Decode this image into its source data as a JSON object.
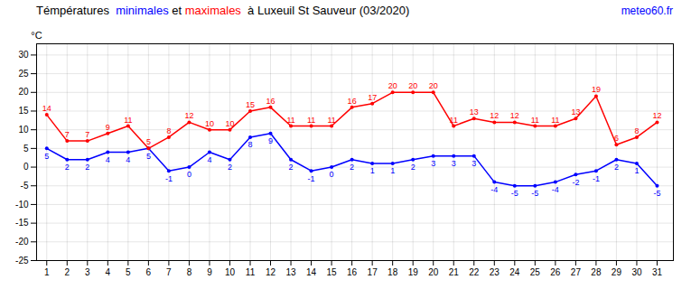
{
  "chart_data": {
    "type": "line",
    "title": "Témpératures  minimales et maximales  à Luxeuil St Sauveur (03/2020)",
    "ylabel": "°C",
    "annotations": [
      "meteo60.fr"
    ],
    "x": [
      1,
      2,
      3,
      4,
      5,
      6,
      7,
      8,
      9,
      10,
      11,
      12,
      13,
      14,
      15,
      16,
      17,
      18,
      19,
      20,
      21,
      22,
      23,
      24,
      25,
      26,
      27,
      28,
      29,
      30,
      31
    ],
    "series": [
      {
        "name": "minimales",
        "color": "blue",
        "marker": "o",
        "values": [
          5,
          2,
          2,
          4,
          4,
          5,
          -1,
          0,
          4,
          2,
          8,
          9,
          2,
          -1,
          0,
          2,
          1,
          1,
          2,
          3,
          3,
          3,
          -4,
          -5,
          -5,
          -4,
          -2,
          -1,
          2,
          1,
          -5
        ]
      },
      {
        "name": "maximales",
        "color": "red",
        "marker": "o",
        "values": [
          14,
          7,
          7,
          9,
          11,
          5,
          8,
          12,
          10,
          10,
          15,
          16,
          11,
          11,
          11,
          16,
          17,
          20,
          20,
          20,
          11,
          13,
          12,
          12,
          11,
          11,
          13,
          19,
          6,
          8,
          12
        ]
      }
    ],
    "xlim": [
      0.5,
      31.8
    ],
    "xticks": [
      1,
      2,
      3,
      4,
      5,
      6,
      7,
      8,
      9,
      10,
      11,
      12,
      13,
      14,
      15,
      16,
      17,
      18,
      19,
      20,
      21,
      22,
      23,
      24,
      25,
      26,
      27,
      28,
      29,
      30,
      31
    ],
    "ylim": [
      -25,
      33
    ],
    "yticks": [
      -25,
      -20,
      -15,
      -10,
      -5,
      0,
      5,
      10,
      15,
      20,
      25,
      30
    ],
    "grid": true,
    "data_labels": true
  }
}
